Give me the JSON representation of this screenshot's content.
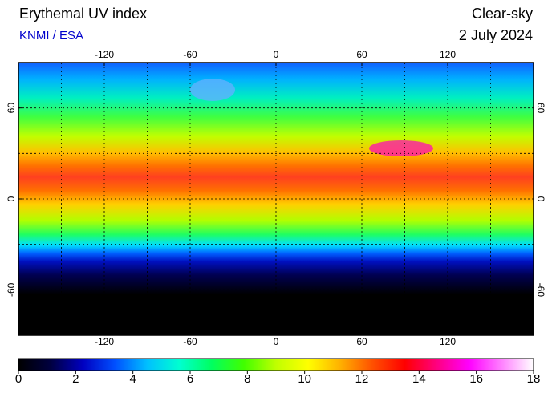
{
  "header": {
    "title": "Erythemal UV index",
    "subtitle": "KNMI / ESA",
    "right_title": "Clear-sky",
    "date": "2 July 2024"
  },
  "map": {
    "xlim": [
      -180,
      180
    ],
    "ylim": [
      -90,
      90
    ],
    "xticks": [
      -120,
      -60,
      0,
      60,
      120
    ],
    "yticks": [
      -60,
      0,
      60
    ],
    "grid_step": 30
  },
  "colorbar": {
    "lim": [
      0,
      18
    ],
    "ticks": [
      0,
      2,
      4,
      6,
      8,
      10,
      12,
      14,
      16,
      18
    ],
    "colors": [
      "#000000",
      "#000040",
      "#0000c0",
      "#0050ff",
      "#00c0ff",
      "#00ffd0",
      "#00ff60",
      "#40ff00",
      "#c0ff00",
      "#ffff00",
      "#ffb000",
      "#ff5000",
      "#ff0000",
      "#ff0080",
      "#ff00ff",
      "#ff80ff",
      "#ffffff"
    ]
  }
}
